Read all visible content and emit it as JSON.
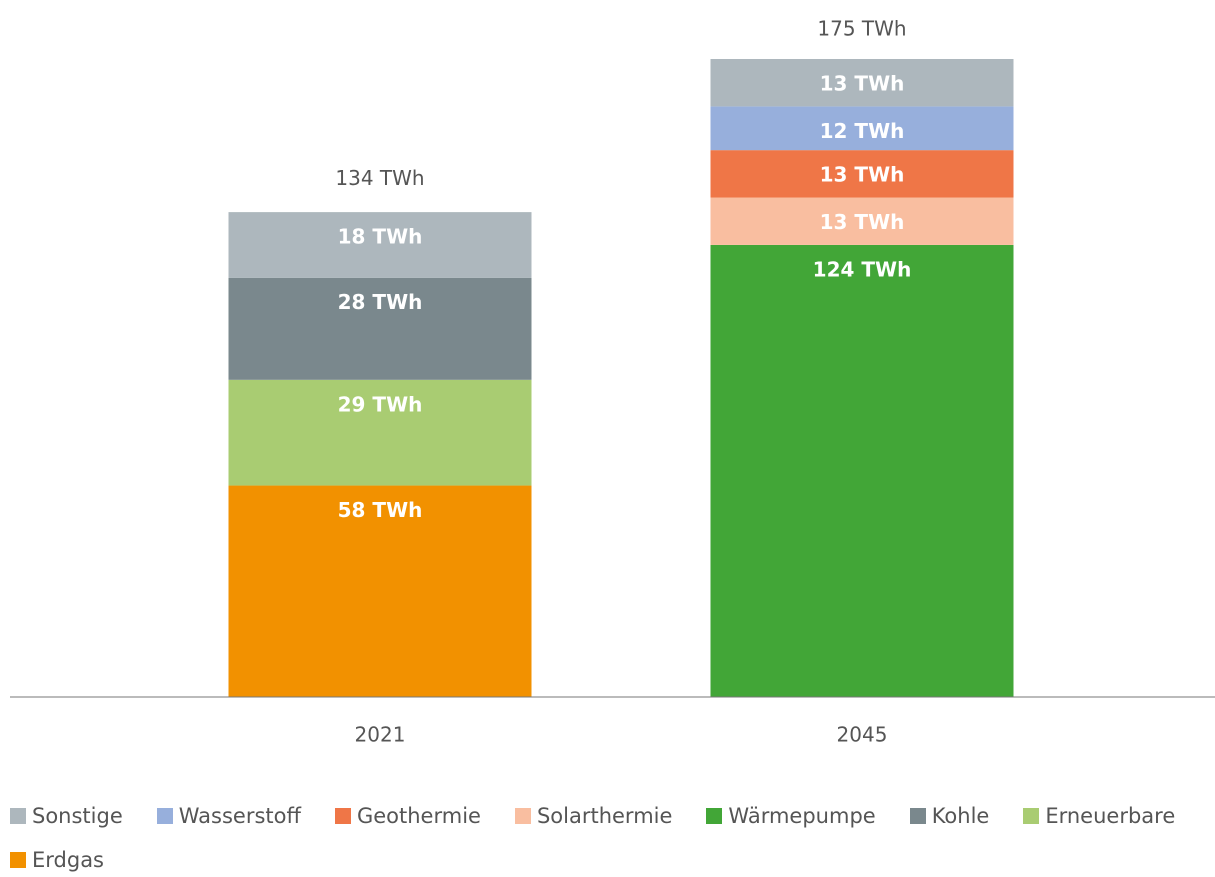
{
  "chart_data": {
    "type": "stacked_bar",
    "categories": [
      "2021",
      "2045"
    ],
    "series": [
      {
        "name": "Sonstige",
        "color": "#adb7bd",
        "values": [
          18,
          13
        ],
        "value_labels": [
          "18 TWh",
          "13 TWh"
        ]
      },
      {
        "name": "Wasserstoff",
        "color": "#97afdc",
        "values": [
          null,
          12
        ],
        "value_labels": [
          null,
          "12 TWh"
        ]
      },
      {
        "name": "Geothermie",
        "color": "#ef7647",
        "values": [
          null,
          13
        ],
        "value_labels": [
          null,
          "13 TWh"
        ]
      },
      {
        "name": "Solarthermie",
        "color": "#f9bea0",
        "values": [
          null,
          13
        ],
        "value_labels": [
          null,
          "13 TWh"
        ]
      },
      {
        "name": "Wärmepumpe",
        "color": "#42a637",
        "values": [
          null,
          124
        ],
        "value_labels": [
          null,
          "124 TWh"
        ]
      },
      {
        "name": "Kohle",
        "color": "#7a888d",
        "values": [
          28,
          null
        ],
        "value_labels": [
          "28 TWh",
          null
        ]
      },
      {
        "name": "Erneuerbare",
        "color": "#a9cc72",
        "values": [
          29,
          null
        ],
        "value_labels": [
          "29 TWh",
          null
        ]
      },
      {
        "name": "Erdgas",
        "color": "#f29100",
        "values": [
          58,
          null
        ],
        "value_labels": [
          "58 TWh",
          null
        ]
      }
    ],
    "totals": [
      134,
      175
    ],
    "total_labels": [
      "134 TWh",
      "175 TWh"
    ]
  }
}
